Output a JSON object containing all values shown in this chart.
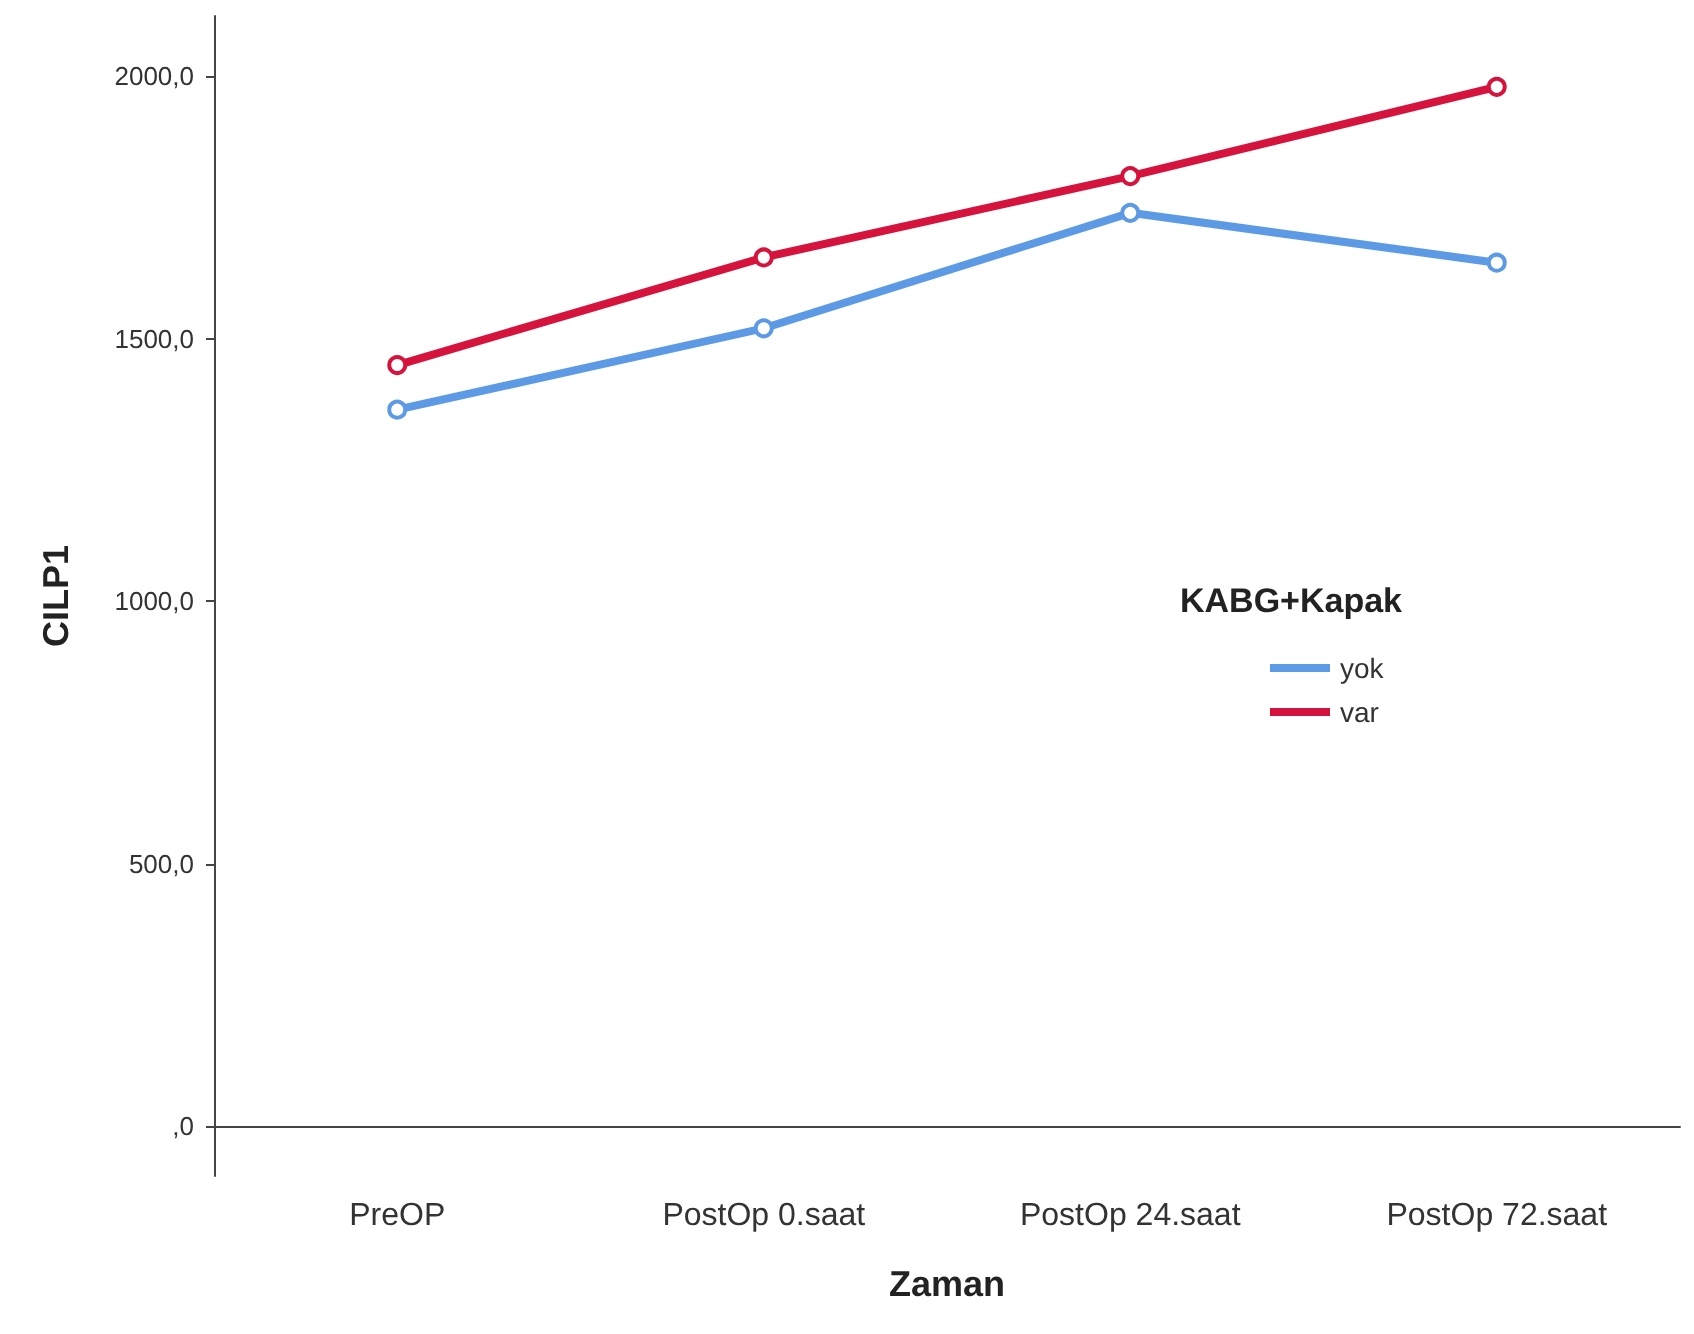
{
  "chart_data": {
    "type": "line",
    "xlabel": "Zaman",
    "ylabel": "CILP1",
    "legend_title": "KABG+Kapak",
    "categories": [
      "PreOP",
      "PostOp 0.saat",
      "PostOp 24.saat",
      "PostOp 72.saat"
    ],
    "series": [
      {
        "name": "yok",
        "color": "#5d9ae6",
        "values": [
          1365,
          1520,
          1740,
          1645
        ]
      },
      {
        "name": "var",
        "color": "#d5133d",
        "values": [
          1450,
          1655,
          1810,
          1980
        ]
      }
    ],
    "ylim": [
      -95,
      2115
    ],
    "yticks": [
      {
        "value": 0,
        "label": ",0"
      },
      {
        "value": 500,
        "label": "500,0"
      },
      {
        "value": 1000,
        "label": "1000,0"
      },
      {
        "value": 1500,
        "label": "1500,0"
      },
      {
        "value": 2000,
        "label": "2000,0"
      }
    ],
    "grid": false,
    "legend": "right",
    "marker": "circle",
    "line_style": "solid"
  }
}
